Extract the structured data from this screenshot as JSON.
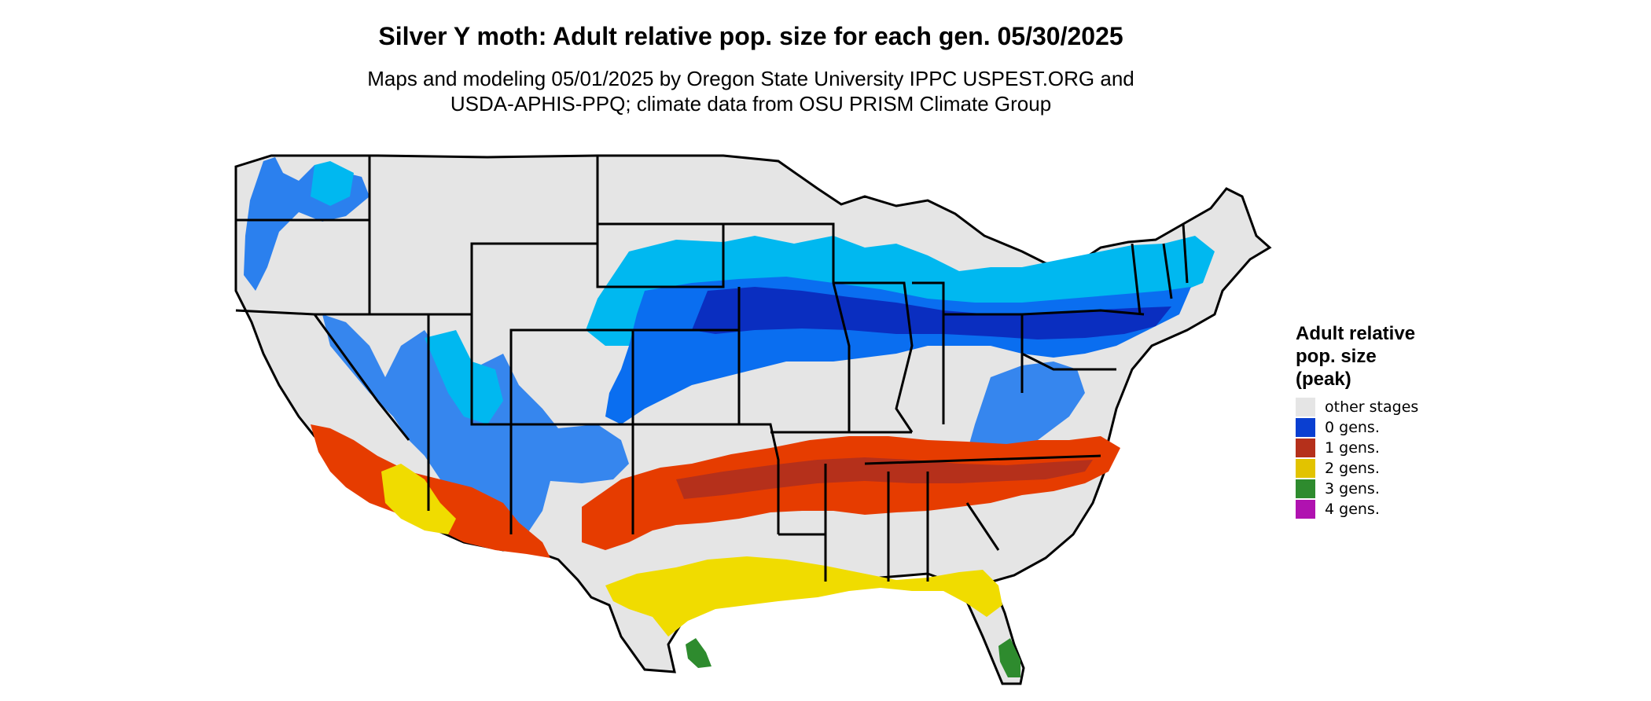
{
  "title": "Silver Y moth: Adult relative pop. size for each gen. 05/30/2025",
  "subtitle_line1": "Maps and modeling 05/01/2025 by Oregon State University IPPC USPEST.ORG and",
  "subtitle_line2": "USDA-APHIS-PPQ; climate data from OSU PRISM Climate Group",
  "legend": {
    "title_lines": [
      "Adult relative",
      "pop. size",
      "(peak)"
    ],
    "items": [
      {
        "label": "other stages",
        "color": "#e5e5e5"
      },
      {
        "label": "0 gens.",
        "color": "#0a3fd1"
      },
      {
        "label": "1 gens.",
        "color": "#b5301b"
      },
      {
        "label": "2 gens.",
        "color": "#e2c300"
      },
      {
        "label": "3 gens.",
        "color": "#2e8b2e"
      },
      {
        "label": "4 gens.",
        "color": "#b012b0"
      }
    ]
  },
  "map_colors": {
    "land": "#e5e5e5",
    "blue_light": "#00b8f0",
    "blue_mid": "#0a6ef0",
    "blue_dark": "#0a2ec0",
    "orange": "#e63c00",
    "red_dark": "#b5301b",
    "yellow": "#f0dc00",
    "green": "#2e8b2e",
    "border": "#000000"
  }
}
